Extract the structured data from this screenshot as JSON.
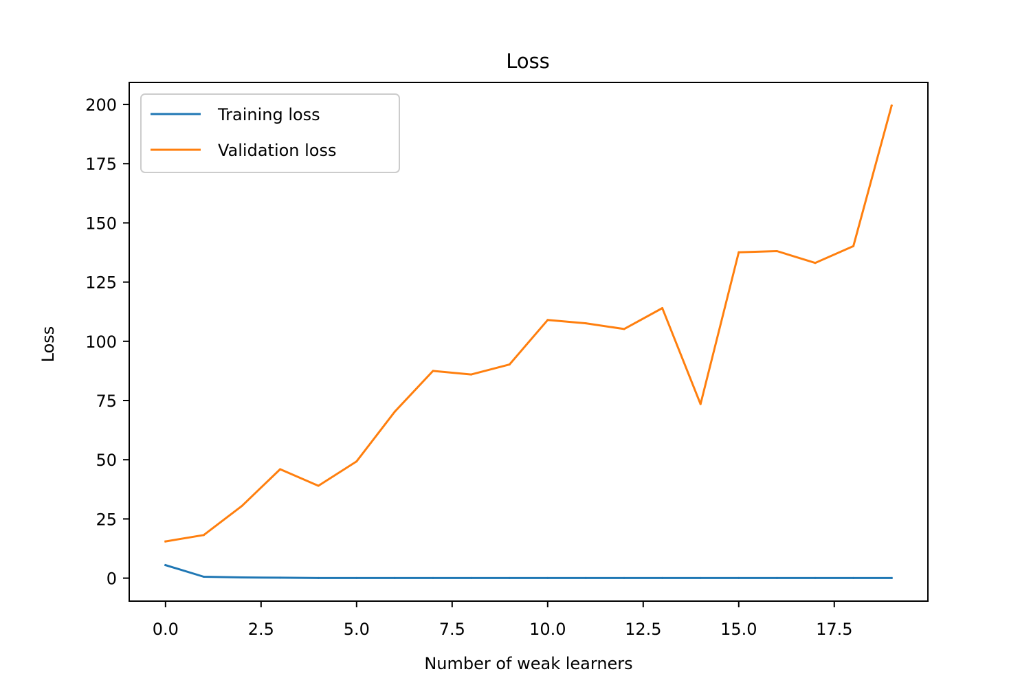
{
  "chart_data": {
    "type": "line",
    "title": "Loss",
    "xlabel": "Number of weak learners",
    "ylabel": "Loss",
    "xlim": [
      -0.95,
      19.95
    ],
    "ylim": [
      -9.7,
      209.3
    ],
    "xticks": [
      0.0,
      2.5,
      5.0,
      7.5,
      10.0,
      12.5,
      15.0,
      17.5
    ],
    "xtick_labels": [
      "0.0",
      "2.5",
      "5.0",
      "7.5",
      "10.0",
      "12.5",
      "15.0",
      "17.5"
    ],
    "yticks": [
      0,
      25,
      50,
      75,
      100,
      125,
      150,
      175,
      200
    ],
    "ytick_labels": [
      "0",
      "25",
      "50",
      "75",
      "100",
      "125",
      "150",
      "175",
      "200"
    ],
    "grid": false,
    "legend_position": "top-left",
    "x": [
      0,
      1,
      2,
      3,
      4,
      5,
      6,
      7,
      8,
      9,
      10,
      11,
      12,
      13,
      14,
      15,
      16,
      17,
      18,
      19
    ],
    "series": [
      {
        "name": "Training loss",
        "color": "#1f77b4",
        "values": [
          5.5,
          0.6,
          0.3,
          0.2,
          0.05,
          0.05,
          0.05,
          0.05,
          0.05,
          0.05,
          0.05,
          0.05,
          0.05,
          0.05,
          0.05,
          0.05,
          0.05,
          0.05,
          0.05,
          0.05
        ]
      },
      {
        "name": "Validation loss",
        "color": "#ff7f0e",
        "values": [
          15.5,
          18.2,
          30.5,
          46.0,
          39.0,
          49.3,
          70.3,
          87.5,
          86.0,
          90.2,
          109.0,
          107.6,
          105.2,
          114.0,
          73.5,
          137.6,
          138.1,
          133.1,
          140.2,
          199.5
        ]
      }
    ]
  }
}
